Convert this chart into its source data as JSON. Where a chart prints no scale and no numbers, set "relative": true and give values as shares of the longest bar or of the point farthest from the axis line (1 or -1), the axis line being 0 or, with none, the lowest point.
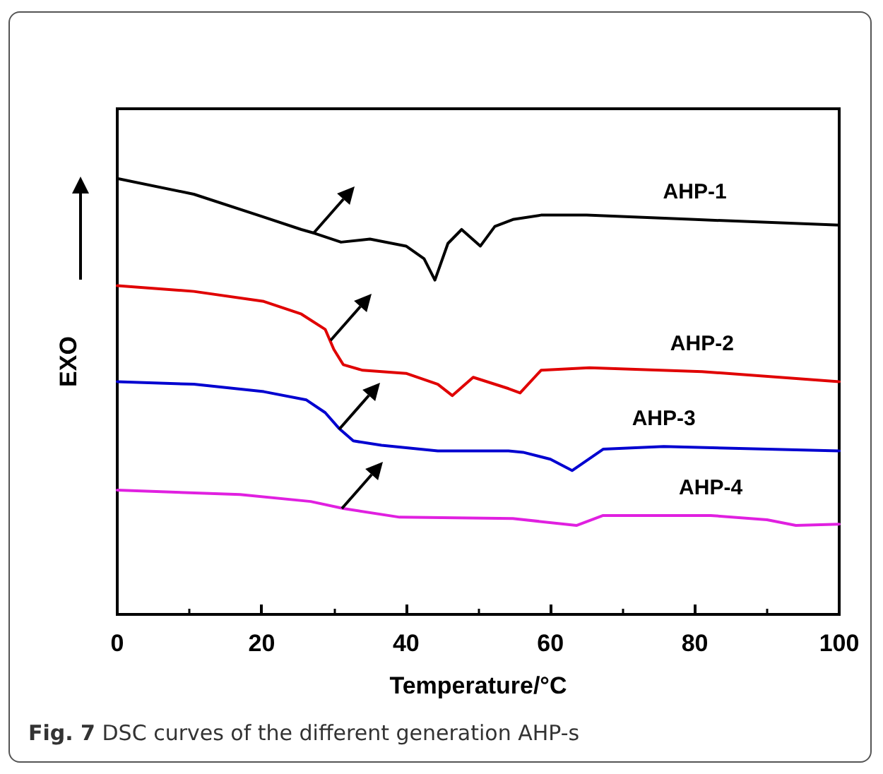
{
  "chart_data": {
    "type": "line",
    "relative": true,
    "xlabel": "Temperature/°C",
    "ylabel": "EXO",
    "xlim": [
      0,
      100
    ],
    "xticks": [
      0,
      20,
      40,
      60,
      80,
      100
    ],
    "grid": false,
    "legend": false,
    "marker": "none",
    "line_style": "solid",
    "annotations": [
      "Fig. 7 DSC curves of the different generation AHP-s"
    ],
    "series": [
      {
        "name": "AHP-1",
        "color": "#000000",
        "x": [
          0,
          10.6,
          20,
          25.5,
          27.4,
          31,
          35,
          40,
          42.5,
          44,
          45.8,
          47.7,
          50.3,
          52.3,
          54.8,
          58.7,
          65,
          80,
          100
        ],
        "values": [
          1.0,
          0.964,
          0.913,
          0.883,
          0.874,
          0.854,
          0.861,
          0.845,
          0.816,
          0.767,
          0.851,
          0.883,
          0.845,
          0.89,
          0.906,
          0.916,
          0.916,
          0.906,
          0.893
        ]
      },
      {
        "name": "AHP-2",
        "color": "#e00000",
        "x": [
          0,
          10.6,
          20.3,
          25.5,
          28.8,
          30,
          31.3,
          34,
          40,
          44.4,
          46.4,
          49.3,
          54.2,
          55.8,
          58.7,
          65.4,
          81,
          100
        ],
        "values": [
          0.754,
          0.741,
          0.718,
          0.689,
          0.654,
          0.608,
          0.573,
          0.56,
          0.553,
          0.528,
          0.502,
          0.544,
          0.518,
          0.508,
          0.56,
          0.566,
          0.557,
          0.534
        ]
      },
      {
        "name": "AHP-3",
        "color": "#0000d0",
        "x": [
          0,
          10.6,
          20.3,
          26.2,
          28.8,
          30.7,
          32.7,
          36.6,
          44.4,
          54.2,
          56.2,
          60,
          63,
          67.3,
          75.7,
          100
        ],
        "values": [
          0.534,
          0.528,
          0.511,
          0.492,
          0.463,
          0.427,
          0.398,
          0.388,
          0.375,
          0.375,
          0.372,
          0.356,
          0.33,
          0.379,
          0.385,
          0.375
        ]
      },
      {
        "name": "AHP-4",
        "color": "#e020e0",
        "x": [
          0,
          17,
          26.8,
          31.3,
          39.1,
          54.8,
          63.6,
          67.3,
          82.2,
          90,
          94,
          100
        ],
        "values": [
          0.285,
          0.275,
          0.259,
          0.243,
          0.223,
          0.22,
          0.204,
          0.227,
          0.227,
          0.217,
          0.204,
          0.207
        ]
      }
    ]
  }
}
